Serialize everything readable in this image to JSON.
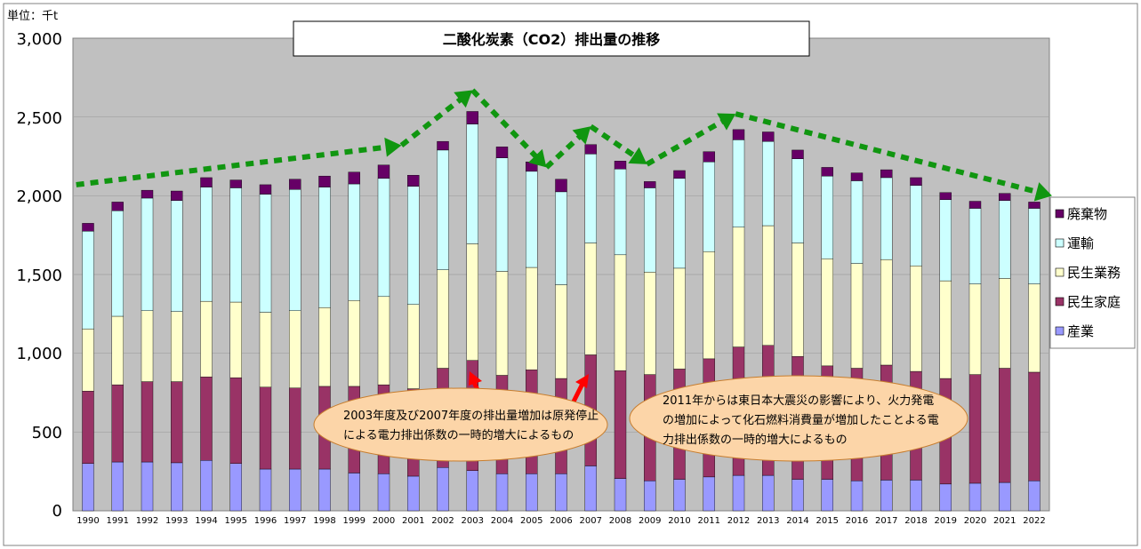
{
  "chart_data": {
    "type": "bar",
    "stacked": true,
    "title": "二酸化炭素（CO2）排出量の推移",
    "unit_label": "単位：千t",
    "yticks": [
      "3,000",
      "2,500",
      "2,000",
      "1,500",
      "1,000",
      "500",
      "0"
    ],
    "ylim": [
      0,
      3000
    ],
    "categories": [
      "1990",
      "1991",
      "1992",
      "1993",
      "1994",
      "1995",
      "1996",
      "1997",
      "1998",
      "1999",
      "2000",
      "2001",
      "2002",
      "2003",
      "2004",
      "2005",
      "2006",
      "2007",
      "2008",
      "2009",
      "2010",
      "2011",
      "2012",
      "2013",
      "2014",
      "2015",
      "2016",
      "2017",
      "2018",
      "2019",
      "2020",
      "2021",
      "2022"
    ],
    "series": [
      {
        "name": "産業",
        "color": "#9999ff",
        "values": [
          300,
          310,
          310,
          305,
          320,
          300,
          265,
          265,
          265,
          240,
          235,
          220,
          275,
          255,
          235,
          235,
          235,
          285,
          205,
          190,
          200,
          215,
          225,
          225,
          200,
          200,
          190,
          195,
          195,
          170,
          175,
          180,
          190
        ]
      },
      {
        "name": "民生家庭",
        "color": "#993366",
        "values": [
          460,
          490,
          510,
          515,
          530,
          545,
          520,
          515,
          525,
          550,
          565,
          555,
          630,
          700,
          625,
          660,
          605,
          705,
          685,
          675,
          700,
          750,
          815,
          825,
          780,
          720,
          715,
          730,
          690,
          670,
          690,
          725,
          690
        ]
      },
      {
        "name": "民生業務",
        "color": "#ffffcc",
        "values": [
          395,
          435,
          450,
          445,
          480,
          480,
          475,
          490,
          500,
          545,
          560,
          535,
          625,
          740,
          660,
          650,
          595,
          710,
          735,
          650,
          640,
          680,
          760,
          760,
          720,
          680,
          665,
          670,
          670,
          620,
          575,
          570,
          560
        ]
      },
      {
        "name": "運輸",
        "color": "#ccffff",
        "values": [
          620,
          670,
          715,
          705,
          725,
          725,
          750,
          770,
          765,
          740,
          750,
          750,
          760,
          760,
          720,
          610,
          590,
          565,
          545,
          535,
          570,
          570,
          555,
          535,
          535,
          525,
          525,
          520,
          510,
          515,
          480,
          495,
          480
        ]
      },
      {
        "name": "廃棄物",
        "color": "#660066",
        "values": [
          50,
          55,
          50,
          60,
          60,
          50,
          60,
          65,
          70,
          75,
          85,
          70,
          55,
          80,
          70,
          60,
          80,
          60,
          50,
          40,
          50,
          65,
          65,
          60,
          55,
          55,
          50,
          50,
          50,
          45,
          45,
          45,
          40
        ]
      }
    ],
    "legend": [
      "廃棄物",
      "運輸",
      "民生業務",
      "民生家庭",
      "産業"
    ],
    "annotations": [
      "2003年度及び2007年度の排出量増加は原発停止による電力排出係数の一時的増大によるもの",
      "2011年からは東日本大震災の影響により、火力発電の増加によって化石燃料消費量が増加したことよる電力排出係数の一時的増大によるもの"
    ],
    "trend_points": [
      [
        1989.6,
        2070
      ],
      [
        2000.6,
        2320
      ],
      [
        2003,
        2670
      ],
      [
        2005.5,
        2180
      ],
      [
        2007,
        2440
      ],
      [
        2008.9,
        2200
      ],
      [
        2011.9,
        2520
      ],
      [
        2022.6,
        2000
      ]
    ]
  },
  "ui": {
    "annotation_1_line_1": "2003年度及び2007年度の排出量増加は原発停止",
    "annotation_1_line_2": "による電力排出係数の一時的増大によるもの",
    "annotation_2_line_1": "2011年からは東日本大震災の影響により、火力発電",
    "annotation_2_line_2": "の増加によって化石燃料消費量が増加したことよる電",
    "annotation_2_line_3": "力排出係数の一時的増大によるもの",
    "colors": {
      "plot_bg": "#c0c0c0",
      "trend": "#109610",
      "arrow": "#ff0000",
      "ellipse": "#fcd5a8",
      "ellipse_stroke": "#c77d2e"
    }
  }
}
